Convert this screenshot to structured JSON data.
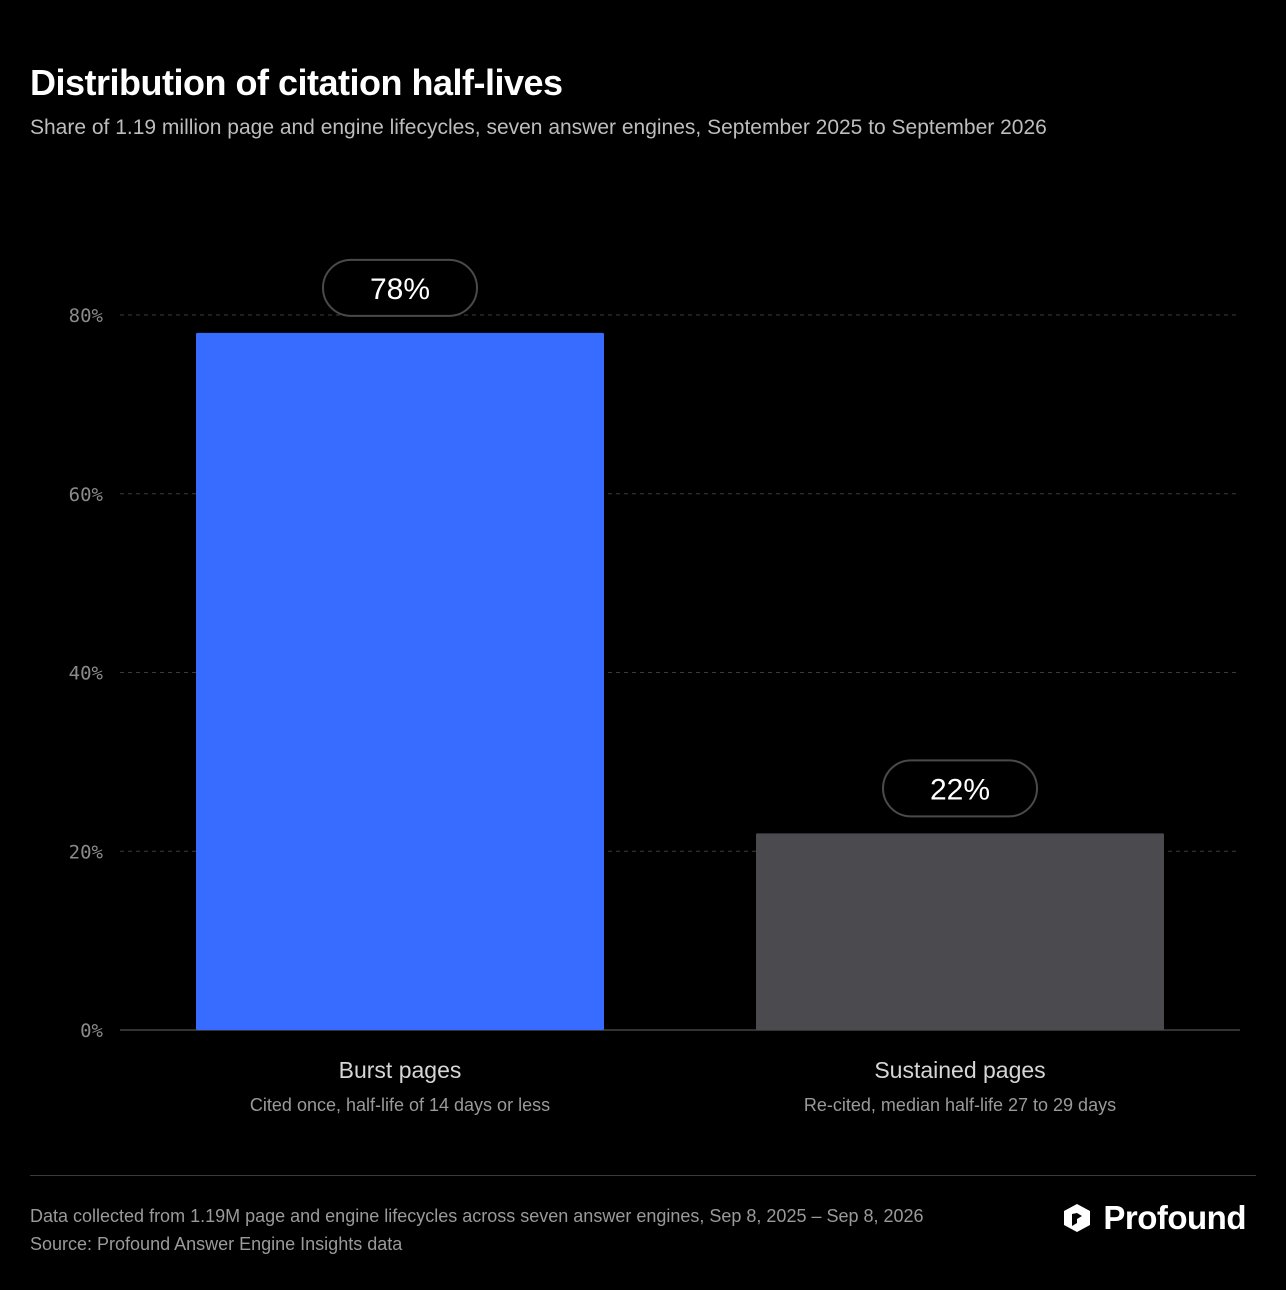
{
  "header": {
    "title": "Distribution of citation half-lives",
    "subtitle": "Share of 1.19 million page and engine lifecycles, seven answer engines, September 2025 to September 2026"
  },
  "chart_data": {
    "type": "bar",
    "categories": [
      "Burst pages",
      "Sustained pages"
    ],
    "category_descriptions": [
      "Cited once, half-life of 14 days or less",
      "Re-cited, median half-life 27 to 29 days"
    ],
    "values": [
      78,
      22
    ],
    "value_labels": [
      "78%",
      "22%"
    ],
    "bar_colors": [
      "#386bff",
      "#4a4a4f"
    ],
    "ylim": [
      0,
      80
    ],
    "yticks": [
      0,
      20,
      40,
      60,
      80
    ],
    "ytick_labels": [
      "0%",
      "20%",
      "40%",
      "60%",
      "80%"
    ],
    "grid": true,
    "legend": "none"
  },
  "footer": {
    "note": "Data collected from 1.19M page and engine lifecycles across seven answer engines, Sep 8, 2025 – Sep 8, 2026",
    "source": "Source: Profound Answer Engine Insights data",
    "brand": "Profound"
  },
  "colors": {
    "background": "#000000",
    "accent": "#386bff",
    "muted_bar": "#4a4a4f"
  },
  "icons": {
    "brand": "profound-logo-icon"
  }
}
